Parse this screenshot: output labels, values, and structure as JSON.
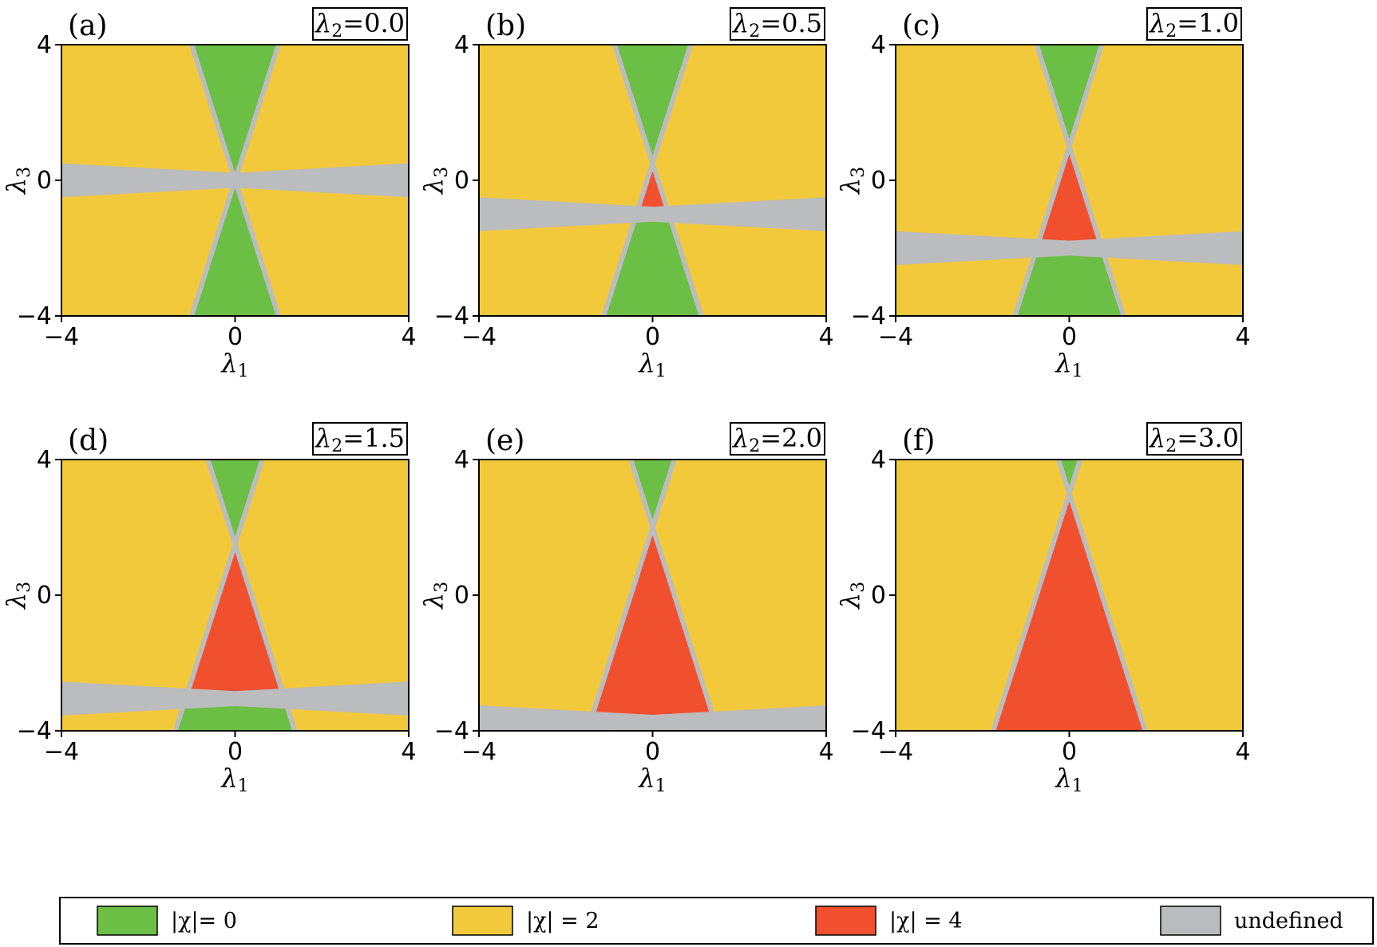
{
  "chart_data": {
    "type": "heatmap",
    "colors": {
      "chi0": "#6cbf45",
      "chi2": "#f2c93a",
      "chi4": "#f1502f",
      "undefined": "#bbbcbe"
    },
    "xlim": [
      -4,
      4
    ],
    "ylim": [
      -4,
      4
    ],
    "xticks": [
      "−4",
      "0",
      "4"
    ],
    "yticks": [
      "−4",
      "0",
      "4"
    ],
    "xlabel": {
      "main": "λ",
      "sub": "1"
    },
    "ylabel": {
      "main": "λ",
      "sub": "3"
    },
    "param_symbol": "λ",
    "param_sub": "2",
    "panels": [
      {
        "label": "(a)",
        "param": "0.0",
        "lambda2": 0.0
      },
      {
        "label": "(b)",
        "param": "0.5",
        "lambda2": 0.5
      },
      {
        "label": "(c)",
        "param": "1.0",
        "lambda2": 1.0
      },
      {
        "label": "(d)",
        "param": "1.5",
        "lambda2": 1.5
      },
      {
        "label": "(e)",
        "param": "2.0",
        "lambda2": 2.0
      },
      {
        "label": "(f)",
        "param": "3.0",
        "lambda2": 3.0
      }
    ],
    "legend": [
      {
        "key": "chi0",
        "label": "|χ|=  0"
      },
      {
        "key": "chi2",
        "label": "|χ| =  2"
      },
      {
        "key": "chi4",
        "label": "|χ| =  4"
      },
      {
        "key": "undefined",
        "label": "undefined"
      }
    ]
  }
}
